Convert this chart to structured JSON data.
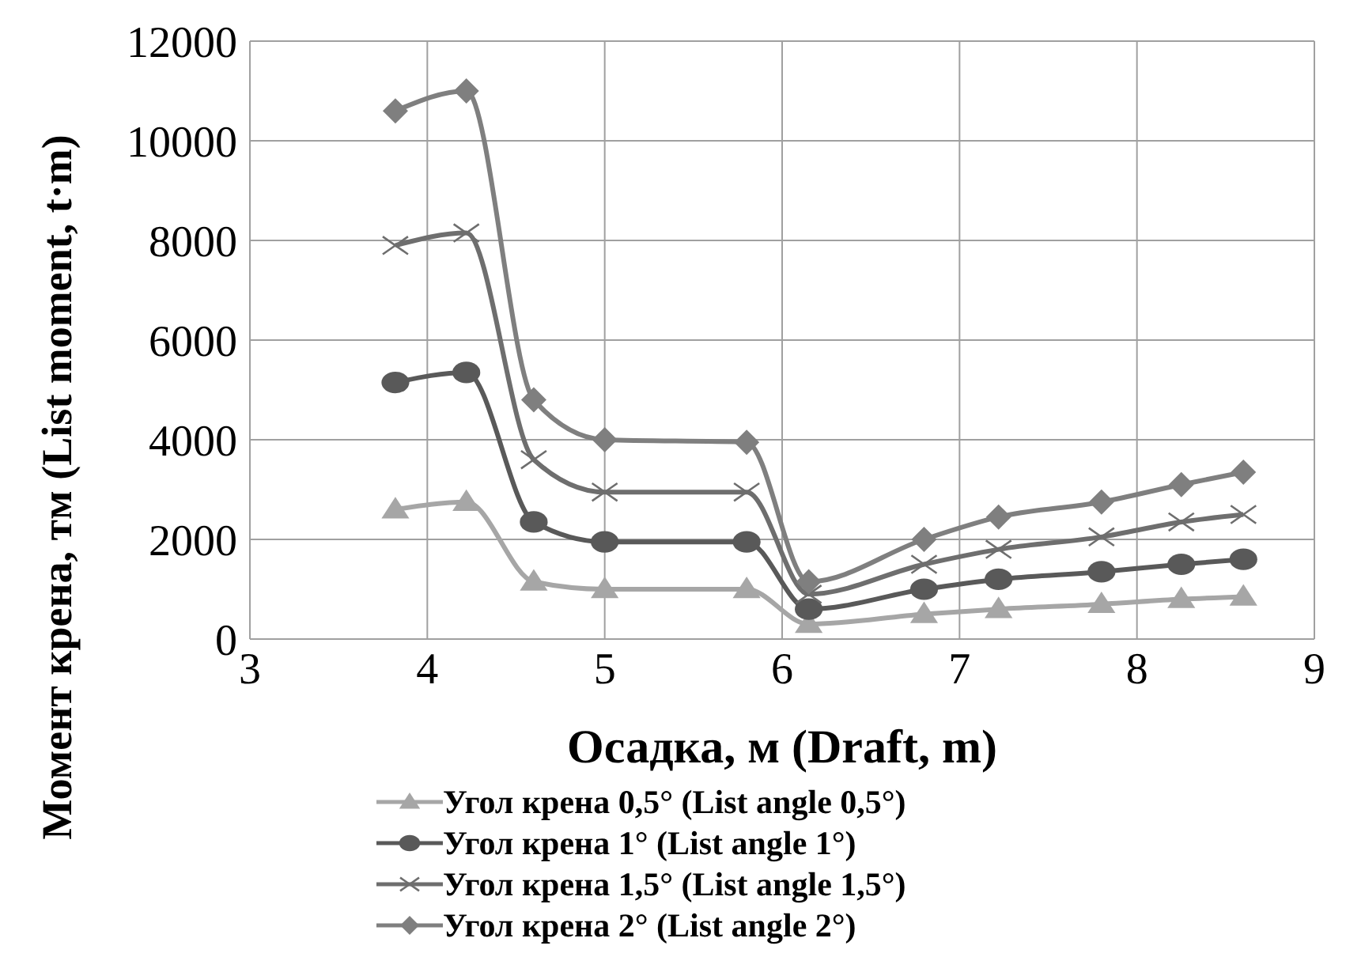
{
  "chart_data": {
    "type": "line",
    "xlabel": "Осадка, м (Draft, m)",
    "ylabel": "Момент крена, тм (List moment, t·m)",
    "x": [
      3.82,
      4.22,
      4.6,
      5.0,
      5.8,
      6.15,
      6.8,
      7.22,
      7.8,
      8.25,
      8.6
    ],
    "xlim": [
      3,
      9
    ],
    "xticks": [
      3,
      4,
      5,
      6,
      7,
      8,
      9
    ],
    "ylim": [
      0,
      12000
    ],
    "yticks": [
      0,
      2000,
      4000,
      6000,
      8000,
      10000,
      12000
    ],
    "grid": true,
    "legend": "bottom",
    "series": [
      {
        "name": "Угол крена 0,5° (List angle 0,5°)",
        "color": "#a6a6a6",
        "marker": "triangle",
        "values": [
          2600,
          2750,
          1150,
          1000,
          1000,
          300,
          500,
          600,
          700,
          800,
          850
        ]
      },
      {
        "name": "Угол крена 1° (List angle 1°)",
        "color": "#595959",
        "marker": "circle",
        "values": [
          5150,
          5350,
          2350,
          1950,
          1950,
          600,
          1000,
          1200,
          1350,
          1500,
          1600
        ]
      },
      {
        "name": "Угол крена 1,5° (List angle 1,5°)",
        "color": "#6e6e6e",
        "marker": "cross",
        "values": [
          7900,
          8150,
          3600,
          2950,
          2950,
          900,
          1500,
          1800,
          2050,
          2350,
          2500
        ]
      },
      {
        "name": "Угол крена 2° (List angle 2°)",
        "color": "#7f7f7f",
        "marker": "diamond",
        "values": [
          10600,
          11000,
          4800,
          4000,
          3950,
          1150,
          2000,
          2450,
          2750,
          3100,
          3350
        ]
      }
    ]
  }
}
